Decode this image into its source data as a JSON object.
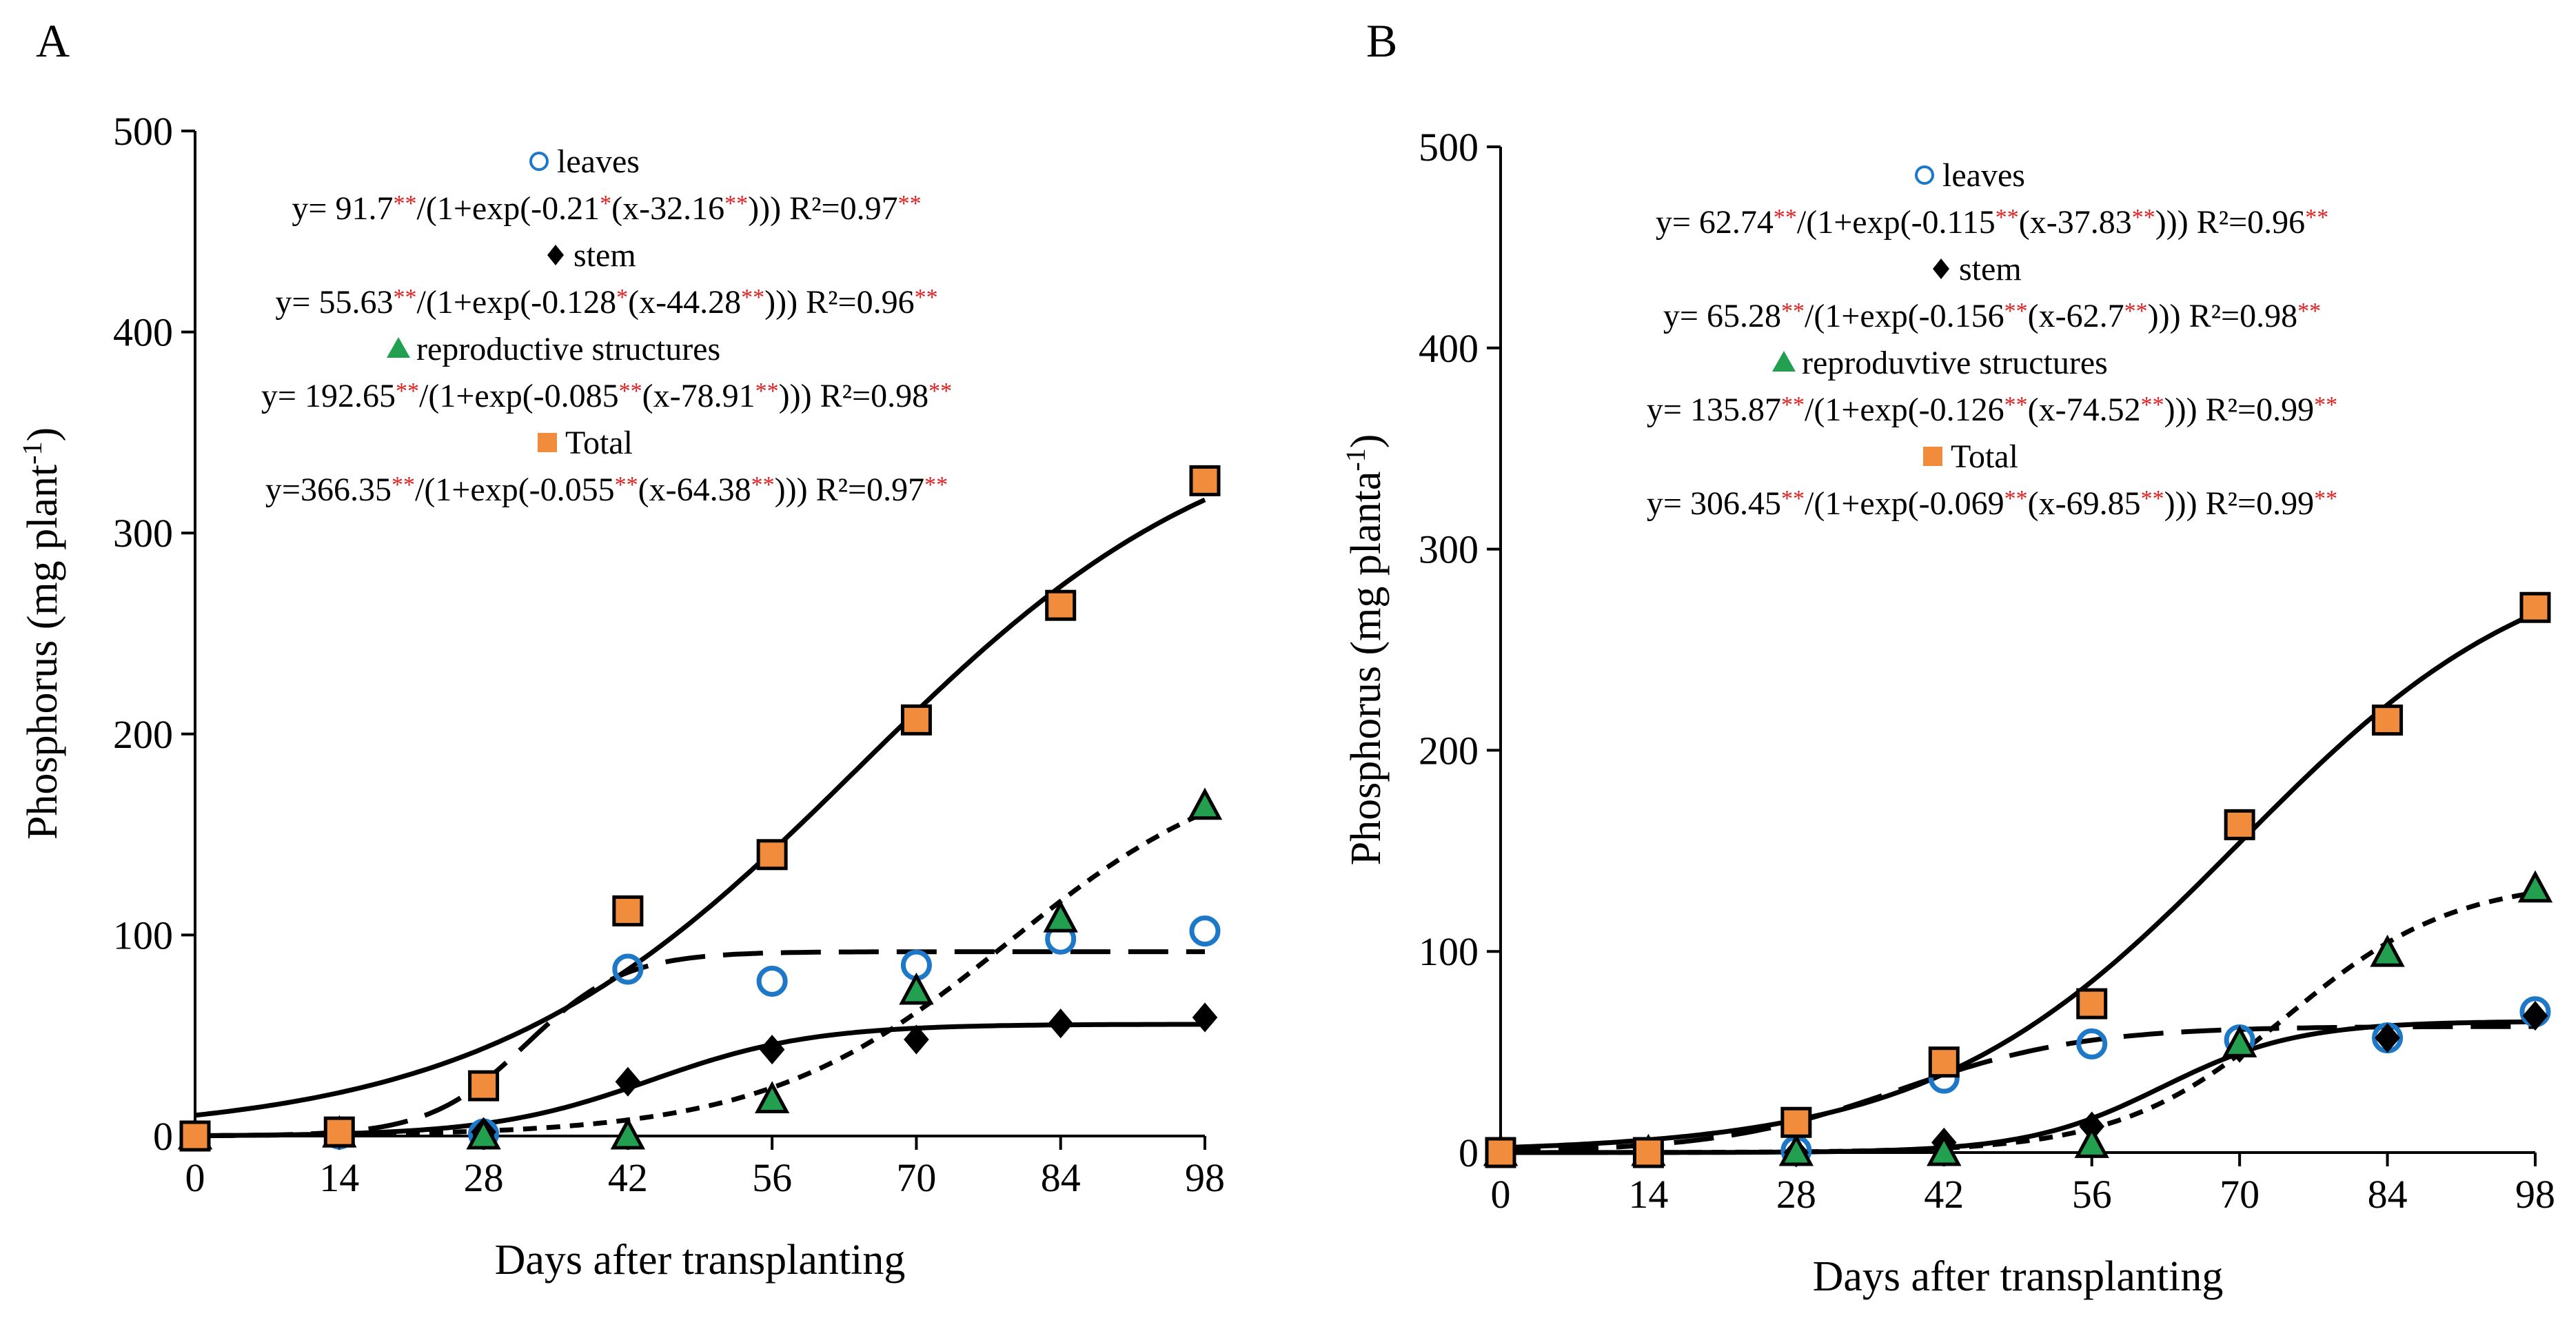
{
  "figure": {
    "panels": [
      "A",
      "B"
    ],
    "colors": {
      "leaves": "#1e78c8",
      "stem": "#000000",
      "reproductive": "#22a050",
      "total": "#f08c3c",
      "significance": "#e02020",
      "line": "#000000"
    }
  },
  "chart_data": [
    {
      "panel": "A",
      "type": "scatter",
      "xlabel": "Days after transplanting",
      "ylabel": "Phosphorus  (mg plant",
      "ylabel_sup": "-1",
      "ylabel_end": ")",
      "x_ticks": [
        0,
        14,
        28,
        42,
        56,
        70,
        84,
        98
      ],
      "x_tick_labels": [
        "0",
        "14",
        "28",
        "42",
        "56",
        "70",
        "84",
        "98"
      ],
      "y_ticks": [
        0,
        100,
        200,
        300,
        400,
        500
      ],
      "y_tick_labels": [
        "0",
        "100",
        "200",
        "300",
        "400",
        "500"
      ],
      "xlim": [
        0,
        98
      ],
      "ylim": [
        0,
        500
      ],
      "x": [
        0,
        14,
        28,
        42,
        56,
        70,
        84,
        98
      ],
      "series": [
        {
          "key": "leaves",
          "name": "leaves",
          "marker": "circle",
          "values": [
            0,
            1,
            1,
            83,
            77,
            85,
            98,
            102
          ],
          "fit": {
            "a": 91.7,
            "b": 0.21,
            "c": 32.16,
            "dash": "long"
          },
          "eq": [
            [
              "y= 91.7",
              "k"
            ],
            [
              "**",
              "r"
            ],
            [
              "/(1+exp(-0.21",
              "k"
            ],
            [
              "*",
              "r"
            ],
            [
              "(x-32.16",
              "k"
            ],
            [
              "**",
              "r"
            ],
            [
              ")))  R²=0.97",
              "k"
            ],
            [
              "**",
              "r"
            ]
          ]
        },
        {
          "key": "stem",
          "name": "stem",
          "marker": "diamond",
          "values": [
            0,
            1,
            2,
            27,
            43,
            48,
            56,
            59
          ],
          "fit": {
            "a": 55.63,
            "b": 0.128,
            "c": 44.28,
            "dash": "solid"
          },
          "eq": [
            [
              "y= 55.63",
              "k"
            ],
            [
              "**",
              "r"
            ],
            [
              "/(1+exp(-0.128",
              "k"
            ],
            [
              "*",
              "r"
            ],
            [
              "(x-44.28",
              "k"
            ],
            [
              "**",
              "r"
            ],
            [
              ")))  R²=0.96",
              "k"
            ],
            [
              "**",
              "r"
            ]
          ]
        },
        {
          "key": "reproductive",
          "name": "reproductive structures",
          "marker": "triangle",
          "values": [
            0,
            1,
            0,
            0,
            18,
            72,
            108,
            164
          ],
          "fit": {
            "a": 192.65,
            "b": 0.085,
            "c": 78.91,
            "dash": "short"
          },
          "eq": [
            [
              "y= 192.65",
              "k"
            ],
            [
              "**",
              "r"
            ],
            [
              "/(1+exp(-0.085",
              "k"
            ],
            [
              "**",
              "r"
            ],
            [
              "(x-78.91",
              "k"
            ],
            [
              "**",
              "r"
            ],
            [
              ")))  R²=0.98",
              "k"
            ],
            [
              "**",
              "r"
            ]
          ]
        },
        {
          "key": "total",
          "name": "Total",
          "marker": "square",
          "values": [
            0,
            2,
            25,
            112,
            140,
            207,
            264,
            326
          ],
          "fit": {
            "a": 366.35,
            "b": 0.055,
            "c": 64.38,
            "dash": "solid"
          },
          "eq": [
            [
              "y=366.35",
              "k"
            ],
            [
              "**",
              "r"
            ],
            [
              "/(1+exp(-0.055",
              "k"
            ],
            [
              "**",
              "r"
            ],
            [
              "(x-64.38",
              "k"
            ],
            [
              "**",
              "r"
            ],
            [
              "))) R²=0.97",
              "k"
            ],
            [
              "**",
              "r"
            ]
          ]
        }
      ]
    },
    {
      "panel": "B",
      "type": "scatter",
      "xlabel": "Days after transplanting",
      "ylabel": "Phosphorus (mg planta",
      "ylabel_sup": "-1",
      "ylabel_end": ")",
      "x_ticks": [
        0,
        14,
        28,
        42,
        56,
        70,
        84,
        98
      ],
      "x_tick_labels": [
        "0",
        "14",
        "28",
        "42",
        "56",
        "70",
        "84",
        "98"
      ],
      "y_ticks": [
        0,
        100,
        200,
        300,
        400,
        500
      ],
      "y_tick_labels": [
        "0",
        "100",
        "200",
        "300",
        "400",
        "500"
      ],
      "xlim": [
        0,
        98
      ],
      "ylim": [
        0,
        500
      ],
      "x": [
        0,
        14,
        28,
        42,
        56,
        70,
        84,
        98
      ],
      "series": [
        {
          "key": "leaves",
          "name": "leaves",
          "marker": "circle",
          "values": [
            0,
            0,
            1,
            37,
            54,
            56,
            57,
            70
          ],
          "fit": {
            "a": 62.74,
            "b": 0.115,
            "c": 37.83,
            "dash": "long"
          },
          "eq": [
            [
              "y= 62.74",
              "k"
            ],
            [
              "**",
              "r"
            ],
            [
              "/(1+exp(-0.115",
              "k"
            ],
            [
              "**",
              "r"
            ],
            [
              "(x-37.83",
              "k"
            ],
            [
              "**",
              "r"
            ],
            [
              ")))  R²=0.96",
              "k"
            ],
            [
              "**",
              "r"
            ]
          ]
        },
        {
          "key": "stem",
          "name": "stem",
          "marker": "diamond",
          "values": [
            0,
            0,
            0,
            5,
            13,
            52,
            57,
            68
          ],
          "fit": {
            "a": 65.28,
            "b": 0.156,
            "c": 62.7,
            "dash": "solid"
          },
          "eq": [
            [
              "y= 65.28",
              "k"
            ],
            [
              "**",
              "r"
            ],
            [
              "/(1+exp(-0.156",
              "k"
            ],
            [
              "**",
              "r"
            ],
            [
              "(x-62.7",
              "k"
            ],
            [
              "**",
              "r"
            ],
            [
              ")))  R²=0.98",
              "k"
            ],
            [
              "**",
              "r"
            ]
          ]
        },
        {
          "key": "reproductive",
          "name": "reproduvtive structures",
          "marker": "triangle",
          "values": [
            0,
            0,
            0,
            0,
            4,
            54,
            99,
            131
          ],
          "fit": {
            "a": 135.87,
            "b": 0.126,
            "c": 74.52,
            "dash": "short"
          },
          "eq": [
            [
              "y= 135.87",
              "k"
            ],
            [
              "**",
              "r"
            ],
            [
              "/(1+exp(-0.126",
              "k"
            ],
            [
              "**",
              "r"
            ],
            [
              "(x-74.52",
              "k"
            ],
            [
              "**",
              "r"
            ],
            [
              ")))  R²=0.99",
              "k"
            ],
            [
              "**",
              "r"
            ]
          ]
        },
        {
          "key": "total",
          "name": "Total",
          "marker": "square",
          "values": [
            0,
            0,
            15,
            45,
            74,
            163,
            215,
            271
          ],
          "fit": {
            "a": 306.45,
            "b": 0.069,
            "c": 69.85,
            "dash": "solid"
          },
          "eq": [
            [
              "y= 306.45",
              "k"
            ],
            [
              "**",
              "r"
            ],
            [
              "/(1+exp(-0.069",
              "k"
            ],
            [
              "**",
              "r"
            ],
            [
              "(x-69.85",
              "k"
            ],
            [
              "**",
              "r"
            ],
            [
              ")))  R²=0.99",
              "k"
            ],
            [
              "**",
              "r"
            ]
          ]
        }
      ]
    }
  ]
}
